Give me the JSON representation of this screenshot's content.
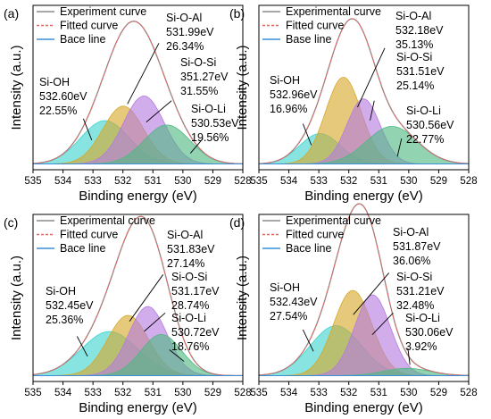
{
  "colors": {
    "experiment": "#8c8c8c",
    "fitted": "#e8645f",
    "baseline": "#3b8ed8",
    "si_oh": "#3ed3cf",
    "si_o_al": "#d6a82a",
    "si_o_si": "#b57ae0",
    "si_o_li": "#4fb883"
  },
  "chart_data": [
    {
      "type": "area",
      "panel": "(a)",
      "xlabel": "Binding energy (eV)",
      "ylabel": "Intensity (a.u.)",
      "xlim": [
        535,
        528
      ],
      "x_ticks": [
        "535",
        "534",
        "533",
        "532",
        "531",
        "530",
        "529",
        "528"
      ],
      "legend_position": "top-left",
      "legend": [
        {
          "label": "Experiment curve",
          "style": "solid",
          "color": "#8c8c8c"
        },
        {
          "label": "Fitted curve",
          "style": "dashed",
          "color": "#e8645f"
        },
        {
          "label": "Bace line",
          "style": "solid",
          "color": "#3b8ed8"
        }
      ],
      "series": [
        {
          "name": "Si-OH",
          "center": 532.6,
          "amplitude": 0.3,
          "fwhm": 1.9,
          "color": "#3ed3cf"
        },
        {
          "name": "Si-O-Al",
          "center": 531.99,
          "amplitude": 0.4,
          "fwhm": 1.6,
          "color": "#d6a82a"
        },
        {
          "name": "Si-O-Si",
          "center": 351.27,
          "plot_center": 531.3,
          "amplitude": 0.47,
          "fwhm": 1.6,
          "color": "#b57ae0"
        },
        {
          "name": "Si-O-Li",
          "center": 530.53,
          "amplitude": 0.27,
          "fwhm": 1.8,
          "color": "#4fb883"
        }
      ],
      "annotations": [
        {
          "name": "Si-OH",
          "lines": [
            "Si-OH",
            "532.60eV",
            "22.55%"
          ]
        },
        {
          "name": "Si-O-Al",
          "lines": [
            "Si-O-Al",
            "531.99eV",
            "26.34%"
          ]
        },
        {
          "name": "Si-O-Si",
          "lines": [
            "Si-O-Si",
            "351.27eV",
            "31.55%"
          ]
        },
        {
          "name": "Si-O-Li",
          "lines": [
            "Si-O-Li",
            "530.53eV",
            "19.56%"
          ]
        }
      ]
    },
    {
      "type": "area",
      "panel": "(b)",
      "xlabel": "Binding energy (eV)",
      "ylabel": "Intensity (a.u.)",
      "xlim": [
        535,
        528
      ],
      "x_ticks": [
        "535",
        "534",
        "533",
        "532",
        "531",
        "530",
        "529",
        "528"
      ],
      "legend_position": "top-left",
      "legend": [
        {
          "label": "Experimental curve",
          "style": "solid",
          "color": "#8c8c8c"
        },
        {
          "label": "Fitted curve",
          "style": "dashed",
          "color": "#e8645f"
        },
        {
          "label": "Base line",
          "style": "solid",
          "color": "#3b8ed8"
        }
      ],
      "series": [
        {
          "name": "Si-OH",
          "center": 532.96,
          "amplitude": 0.21,
          "fwhm": 1.6,
          "color": "#3ed3cf"
        },
        {
          "name": "Si-O-Al",
          "center": 532.18,
          "amplitude": 0.6,
          "fwhm": 1.4,
          "color": "#d6a82a"
        },
        {
          "name": "Si-O-Si",
          "center": 531.51,
          "amplitude": 0.45,
          "fwhm": 1.3,
          "color": "#b57ae0"
        },
        {
          "name": "Si-O-Li",
          "center": 530.56,
          "amplitude": 0.26,
          "fwhm": 2.0,
          "color": "#4fb883"
        }
      ],
      "annotations": [
        {
          "name": "Si-OH",
          "lines": [
            "Si-OH",
            "532.96eV",
            "16.96%"
          ]
        },
        {
          "name": "Si-O-Al",
          "lines": [
            "Si-O-Al",
            "532.18eV",
            "35.13%"
          ]
        },
        {
          "name": "Si-O-Si",
          "lines": [
            "Si-O-Si",
            "531.51eV",
            "25.14%"
          ]
        },
        {
          "name": "Si-O-Li",
          "lines": [
            "Si-O-Li",
            "530.56eV",
            "22.77%"
          ]
        }
      ]
    },
    {
      "type": "area",
      "panel": "(c)",
      "xlabel": "Binding energy (eV)",
      "ylabel": "Intensity (a.u.)",
      "xlim": [
        535,
        528
      ],
      "x_ticks": [
        "535",
        "534",
        "533",
        "532",
        "531",
        "530",
        "529",
        "528"
      ],
      "legend_position": "top-left",
      "legend": [
        {
          "label": "Experimental curve",
          "style": "solid",
          "color": "#8c8c8c"
        },
        {
          "label": "Fitted curve",
          "style": "dashed",
          "color": "#e8645f"
        },
        {
          "label": "Bace line",
          "style": "solid",
          "color": "#3b8ed8"
        }
      ],
      "series": [
        {
          "name": "Si-OH",
          "center": 532.45,
          "amplitude": 0.3,
          "fwhm": 2.2,
          "color": "#3ed3cf"
        },
        {
          "name": "Si-O-Al",
          "center": 531.83,
          "amplitude": 0.41,
          "fwhm": 1.6,
          "color": "#d6a82a"
        },
        {
          "name": "Si-O-Si",
          "center": 531.17,
          "amplitude": 0.47,
          "fwhm": 1.5,
          "color": "#b57ae0"
        },
        {
          "name": "Si-O-Li",
          "center": 530.72,
          "amplitude": 0.28,
          "fwhm": 1.6,
          "color": "#4fb883"
        }
      ],
      "annotations": [
        {
          "name": "Si-OH",
          "lines": [
            "Si-OH",
            "532.45eV",
            "25.36%"
          ]
        },
        {
          "name": "Si-O-Al",
          "lines": [
            "Si-O-Al",
            "531.83eV",
            "27.14%"
          ]
        },
        {
          "name": "Si-O-Si",
          "lines": [
            "Si-O-Si",
            "531.17eV",
            "28.74%"
          ]
        },
        {
          "name": "Si-O-Li",
          "lines": [
            "Si-O-Li",
            "530.72eV",
            "18.76%"
          ]
        }
      ]
    },
    {
      "type": "area",
      "panel": "(d)",
      "xlabel": "Binding energy (eV)",
      "ylabel": "Intensity (a.u.)",
      "xlim": [
        535,
        528
      ],
      "x_ticks": [
        "535",
        "534",
        "533",
        "532",
        "531",
        "530",
        "529",
        "528"
      ],
      "legend_position": "top-left",
      "legend": [
        {
          "label": "Experimental curve",
          "style": "solid",
          "color": "#8c8c8c"
        },
        {
          "label": "Fitted curve",
          "style": "dashed",
          "color": "#e8645f"
        },
        {
          "label": "Bace line",
          "style": "solid",
          "color": "#3b8ed8"
        }
      ],
      "series": [
        {
          "name": "Si-OH",
          "center": 532.43,
          "amplitude": 0.34,
          "fwhm": 2.0,
          "color": "#3ed3cf"
        },
        {
          "name": "Si-O-Al",
          "center": 531.87,
          "amplitude": 0.58,
          "fwhm": 1.5,
          "color": "#d6a82a"
        },
        {
          "name": "Si-O-Si",
          "center": 531.21,
          "amplitude": 0.55,
          "fwhm": 1.4,
          "color": "#b57ae0"
        },
        {
          "name": "Si-O-Li",
          "center": 530.06,
          "amplitude": 0.05,
          "fwhm": 1.8,
          "color": "#4fb883"
        }
      ],
      "annotations": [
        {
          "name": "Si-OH",
          "lines": [
            "Si-OH",
            "532.43eV",
            "27.54%"
          ]
        },
        {
          "name": "Si-O-Al",
          "lines": [
            "Si-O-Al",
            "531.87eV",
            "36.06%"
          ]
        },
        {
          "name": "Si-O-Si",
          "lines": [
            "Si-O-Si",
            "531.21eV",
            "32.48%"
          ]
        },
        {
          "name": "Si-O-Li",
          "lines": [
            "Si-O-Li",
            "530.06eV",
            "3.92%"
          ]
        }
      ]
    }
  ]
}
